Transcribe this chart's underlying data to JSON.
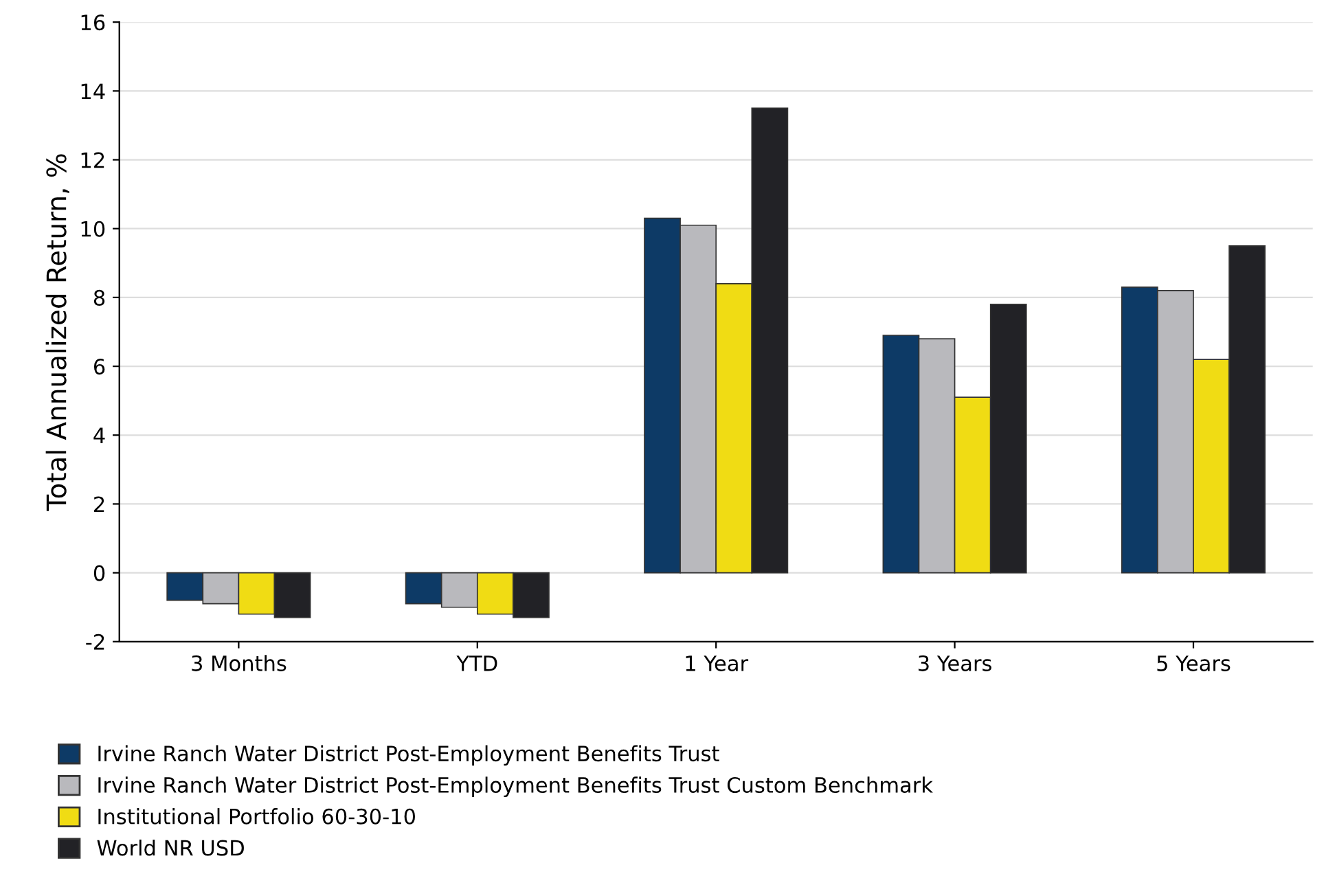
{
  "chart_data": {
    "type": "bar",
    "ylabel": "Total Annualized Return, %",
    "categories": [
      "3 Months",
      "YTD",
      "1 Year",
      "3 Years",
      "5 Years"
    ],
    "series": [
      {
        "name": "Irvine Ranch Water District Post-Employment Benefits Trust",
        "color": "#0d3a66",
        "values": [
          -0.8,
          -0.9,
          10.3,
          6.9,
          8.3
        ]
      },
      {
        "name": "Irvine Ranch Water District Post-Employment Benefits Trust Custom Benchmark",
        "color": "#b9b9bd",
        "values": [
          -0.9,
          -1.0,
          10.1,
          6.8,
          8.2
        ]
      },
      {
        "name": "Institutional Portfolio 60-30-10",
        "color": "#f0dc14",
        "values": [
          -1.2,
          -1.2,
          8.4,
          5.1,
          6.2
        ]
      },
      {
        "name": "World NR USD",
        "color": "#222226",
        "values": [
          -1.3,
          -1.3,
          13.5,
          7.8,
          9.5
        ]
      }
    ],
    "ylim": [
      -2,
      16
    ],
    "yticks": [
      -2,
      0,
      2,
      4,
      6,
      8,
      10,
      12,
      14,
      16
    ],
    "grid": "y",
    "legend": "bottom"
  }
}
